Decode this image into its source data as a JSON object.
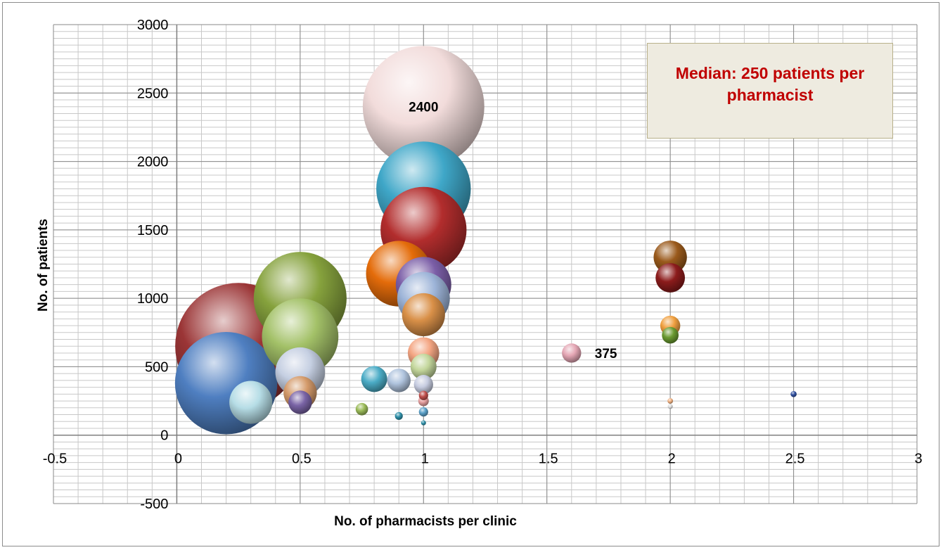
{
  "chart_data": {
    "type": "bubble",
    "xlabel": "No. of pharmacists per clinic",
    "ylabel": "No. of patients",
    "xlim": [
      -0.5,
      3
    ],
    "ylim": [
      -500,
      3000
    ],
    "x_ticks": [
      "-0.5",
      "0",
      "0.5",
      "1",
      "1.5",
      "2",
      "2.5",
      "3"
    ],
    "y_ticks": [
      "-500",
      "0",
      "500",
      "1000",
      "1500",
      "2000",
      "2500",
      "3000"
    ],
    "grid": true,
    "annotation": "Median: 250 patients per pharmacist",
    "points": [
      {
        "x": 0.25,
        "y": 650,
        "size": 2600,
        "color": "#9b3536"
      },
      {
        "x": 0.5,
        "y": 1000,
        "size": 1400,
        "color": "#86a23d"
      },
      {
        "x": 0.2,
        "y": 380,
        "size": 1700,
        "color": "#4f7fc1"
      },
      {
        "x": 0.5,
        "y": 720,
        "size": 950,
        "color": "#a3c168"
      },
      {
        "x": 0.3,
        "y": 240,
        "size": 300,
        "color": "#b6dde6"
      },
      {
        "x": 0.5,
        "y": 240,
        "size": 90,
        "color": "#7a64a6"
      },
      {
        "x": 0.5,
        "y": 310,
        "size": 180,
        "color": "#d49a6a"
      },
      {
        "x": 0.5,
        "y": 460,
        "size": 400,
        "color": "#c5cfe2"
      },
      {
        "x": 0.75,
        "y": 190,
        "size": 25,
        "color": "#9bbb59"
      },
      {
        "x": 0.8,
        "y": 410,
        "size": 110,
        "color": "#4bacc6"
      },
      {
        "x": 0.9,
        "y": 400,
        "size": 90,
        "color": "#b0c4de"
      },
      {
        "x": 0.9,
        "y": 140,
        "size": 10,
        "color": "#2e8fa8"
      },
      {
        "x": 0.9,
        "y": 1180,
        "size": 700,
        "color": "#e46c0a"
      },
      {
        "x": 1,
        "y": 2400,
        "size": 2400,
        "color": "#f2dcdb",
        "label": "2400"
      },
      {
        "x": 1,
        "y": 1800,
        "size": 1450,
        "color": "#3fa7c8"
      },
      {
        "x": 1,
        "y": 1500,
        "size": 1200,
        "color": "#b22d2d"
      },
      {
        "x": 1,
        "y": 1100,
        "size": 500,
        "color": "#7b5ea7"
      },
      {
        "x": 1,
        "y": 880,
        "size": 300,
        "color": "#d99048"
      },
      {
        "x": 1,
        "y": 1000,
        "size": 450,
        "color": "#9db4d8"
      },
      {
        "x": 1,
        "y": 500,
        "size": 110,
        "color": "#c3d69b"
      },
      {
        "x": 1,
        "y": 600,
        "size": 160,
        "color": "#f4a582"
      },
      {
        "x": 1,
        "y": 370,
        "size": 60,
        "color": "#c6cce0"
      },
      {
        "x": 1,
        "y": 290,
        "size": 14,
        "color": "#c0504d"
      },
      {
        "x": 1,
        "y": 250,
        "size": 18,
        "color": "#e6a0a0"
      },
      {
        "x": 1,
        "y": 170,
        "size": 14,
        "color": "#5aa0c8"
      },
      {
        "x": 1,
        "y": 90,
        "size": 4,
        "color": "#2e8fa8"
      },
      {
        "x": 1.6,
        "y": 600,
        "size": 60,
        "color": "#e4a6b4",
        "label": "375"
      },
      {
        "x": 2,
        "y": 1300,
        "size": 180,
        "color": "#9a5a1c"
      },
      {
        "x": 2,
        "y": 1150,
        "size": 140,
        "color": "#8c1c1c"
      },
      {
        "x": 2,
        "y": 800,
        "size": 65,
        "color": "#f0a040"
      },
      {
        "x": 2,
        "y": 730,
        "size": 45,
        "color": "#6a9a30"
      },
      {
        "x": 2,
        "y": 250,
        "size": 5,
        "color": "#f0b080"
      },
      {
        "x": 2,
        "y": 210,
        "size": 4,
        "color": "#e0e0e0"
      },
      {
        "x": 2.5,
        "y": 300,
        "size": 6,
        "color": "#3050a0"
      }
    ]
  }
}
